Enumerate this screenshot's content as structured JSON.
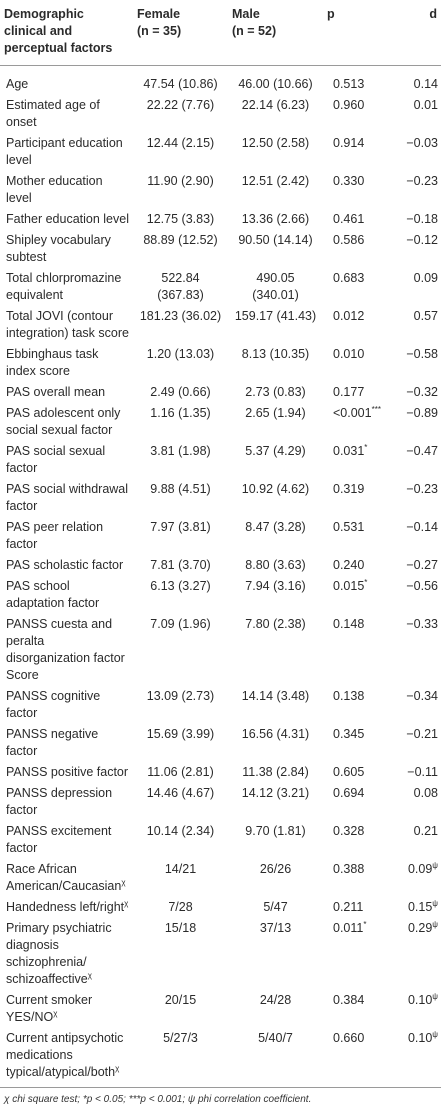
{
  "table": {
    "header": [
      {
        "text": "Demographic clinical and perceptual factors"
      },
      {
        "text": "Female",
        "n": "(n = 35)"
      },
      {
        "text": "Male",
        "n": "(n = 52)"
      },
      {
        "text": "p"
      },
      {
        "text": "d"
      }
    ],
    "rows": [
      [
        {
          "text": "Age"
        },
        {
          "text": "47.54 (10.86)"
        },
        {
          "text": "46.00 (10.66)"
        },
        {
          "text": "0.513"
        },
        {
          "text": "0.14"
        }
      ],
      [
        {
          "text": "Estimated age of onset"
        },
        {
          "text": "22.22 (7.76)"
        },
        {
          "text": "22.14 (6.23)"
        },
        {
          "text": "0.960"
        },
        {
          "text": "0.01"
        }
      ],
      [
        {
          "text": "Participant education level"
        },
        {
          "text": "12.44 (2.15)"
        },
        {
          "text": "12.50 (2.58)"
        },
        {
          "text": "0.914"
        },
        {
          "text": "−0.03"
        }
      ],
      [
        {
          "text": "Mother education level"
        },
        {
          "text": "11.90 (2.90)"
        },
        {
          "text": "12.51 (2.42)"
        },
        {
          "text": "0.330"
        },
        {
          "text": "−0.23"
        }
      ],
      [
        {
          "text": "Father education level"
        },
        {
          "text": "12.75 (3.83)"
        },
        {
          "text": "13.36 (2.66)"
        },
        {
          "text": "0.461"
        },
        {
          "text": "−0.18"
        }
      ],
      [
        {
          "text": "Shipley vocabulary subtest"
        },
        {
          "text": "88.89 (12.52)"
        },
        {
          "text": "90.50 (14.14)"
        },
        {
          "text": "0.586"
        },
        {
          "text": "−0.12"
        }
      ],
      [
        {
          "text": "Total chlorpromazine equivalent"
        },
        {
          "text": "522.84 (367.83)"
        },
        {
          "text": "490.05 (340.01)"
        },
        {
          "text": "0.683"
        },
        {
          "text": "0.09"
        }
      ],
      [
        {
          "text": "Total JOVI (contour integration) task score"
        },
        {
          "text": "181.23 (36.02)"
        },
        {
          "text": "159.17 (41.43)"
        },
        {
          "text": "0.012"
        },
        {
          "text": "0.57"
        }
      ],
      [
        {
          "text": "Ebbinghaus task index score"
        },
        {
          "text": "1.20 (13.03)"
        },
        {
          "text": "8.13 (10.35)"
        },
        {
          "text": "0.010"
        },
        {
          "text": "−0.58"
        }
      ],
      [
        {
          "text": "PAS overall mean"
        },
        {
          "text": "2.49 (0.66)"
        },
        {
          "text": "2.73 (0.83)"
        },
        {
          "text": "0.177"
        },
        {
          "text": "−0.32"
        }
      ],
      [
        {
          "text": "PAS adolescent only social sexual factor"
        },
        {
          "text": "1.16 (1.35)"
        },
        {
          "text": "2.65 (1.94)"
        },
        {
          "text": "<0.001",
          "sup": "***"
        },
        {
          "text": "−0.89"
        }
      ],
      [
        {
          "text": "PAS social sexual factor"
        },
        {
          "text": "3.81 (1.98)"
        },
        {
          "text": "5.37 (4.29)"
        },
        {
          "text": "0.031",
          "sup": "*"
        },
        {
          "text": "−0.47"
        }
      ],
      [
        {
          "text": "PAS social withdrawal factor"
        },
        {
          "text": "9.88 (4.51)"
        },
        {
          "text": "10.92 (4.62)"
        },
        {
          "text": "0.319"
        },
        {
          "text": "−0.23"
        }
      ],
      [
        {
          "text": "PAS peer relation factor"
        },
        {
          "text": "7.97 (3.81)"
        },
        {
          "text": "8.47 (3.28)"
        },
        {
          "text": "0.531"
        },
        {
          "text": "−0.14"
        }
      ],
      [
        {
          "text": "PAS scholastic factor"
        },
        {
          "text": "7.81 (3.70)"
        },
        {
          "text": "8.80 (3.63)"
        },
        {
          "text": "0.240"
        },
        {
          "text": "−0.27"
        }
      ],
      [
        {
          "text": "PAS school adaptation factor"
        },
        {
          "text": "6.13 (3.27)"
        },
        {
          "text": "7.94 (3.16)"
        },
        {
          "text": "0.015",
          "sup": "*"
        },
        {
          "text": "−0.56"
        }
      ],
      [
        {
          "text": "PANSS cuesta and peralta disorganization factor Score"
        },
        {
          "text": "7.09 (1.96)"
        },
        {
          "text": "7.80 (2.38)"
        },
        {
          "text": "0.148"
        },
        {
          "text": "−0.33"
        }
      ],
      [
        {
          "text": "PANSS cognitive factor"
        },
        {
          "text": "13.09 (2.73)"
        },
        {
          "text": "14.14 (3.48)"
        },
        {
          "text": "0.138"
        },
        {
          "text": "−0.34"
        }
      ],
      [
        {
          "text": "PANSS negative factor"
        },
        {
          "text": "15.69 (3.99)"
        },
        {
          "text": "16.56 (4.31)"
        },
        {
          "text": "0.345"
        },
        {
          "text": "−0.21"
        }
      ],
      [
        {
          "text": "PANSS positive factor"
        },
        {
          "text": "11.06 (2.81)"
        },
        {
          "text": "11.38 (2.84)"
        },
        {
          "text": "0.605"
        },
        {
          "text": "−0.11"
        }
      ],
      [
        {
          "text": "PANSS depression factor"
        },
        {
          "text": "14.46 (4.67)"
        },
        {
          "text": "14.12 (3.21)"
        },
        {
          "text": "0.694"
        },
        {
          "text": "0.08"
        }
      ],
      [
        {
          "text": "PANSS excitement factor"
        },
        {
          "text": "10.14 (2.34)"
        },
        {
          "text": "9.70 (1.81)"
        },
        {
          "text": "0.328"
        },
        {
          "text": "0.21"
        }
      ],
      [
        {
          "text": "Race African American/Caucasian",
          "sup": "χ"
        },
        {
          "text": "14/21"
        },
        {
          "text": "26/26"
        },
        {
          "text": "0.388"
        },
        {
          "text": "0.09",
          "sup": "ψ"
        }
      ],
      [
        {
          "text": "Handedness left/right",
          "sup": "χ"
        },
        {
          "text": "7/28"
        },
        {
          "text": "5/47"
        },
        {
          "text": "0.211"
        },
        {
          "text": "0.15",
          "sup": "ψ"
        }
      ],
      [
        {
          "text": "Primary psychiatric diagnosis schizophrenia/ schizoaffective",
          "sup": "χ"
        },
        {
          "text": "15/18"
        },
        {
          "text": "37/13"
        },
        {
          "text": "0.011",
          "sup": "*"
        },
        {
          "text": "0.29",
          "sup": "ψ"
        }
      ],
      [
        {
          "text": "Current smoker YES/NO",
          "sup": "χ"
        },
        {
          "text": "20/15"
        },
        {
          "text": "24/28"
        },
        {
          "text": "0.384"
        },
        {
          "text": "0.10",
          "sup": "ψ"
        }
      ],
      [
        {
          "text": "Current antipsychotic medications typical/atypical/both",
          "sup": "χ"
        },
        {
          "text": "5/27/3"
        },
        {
          "text": "5/40/7"
        },
        {
          "text": "0.660"
        },
        {
          "text": "0.10",
          "sup": "ψ"
        }
      ]
    ]
  },
  "footnote": "χ chi square test; *p < 0.05; ***p < 0.001; ψ phi correlation coefficient."
}
